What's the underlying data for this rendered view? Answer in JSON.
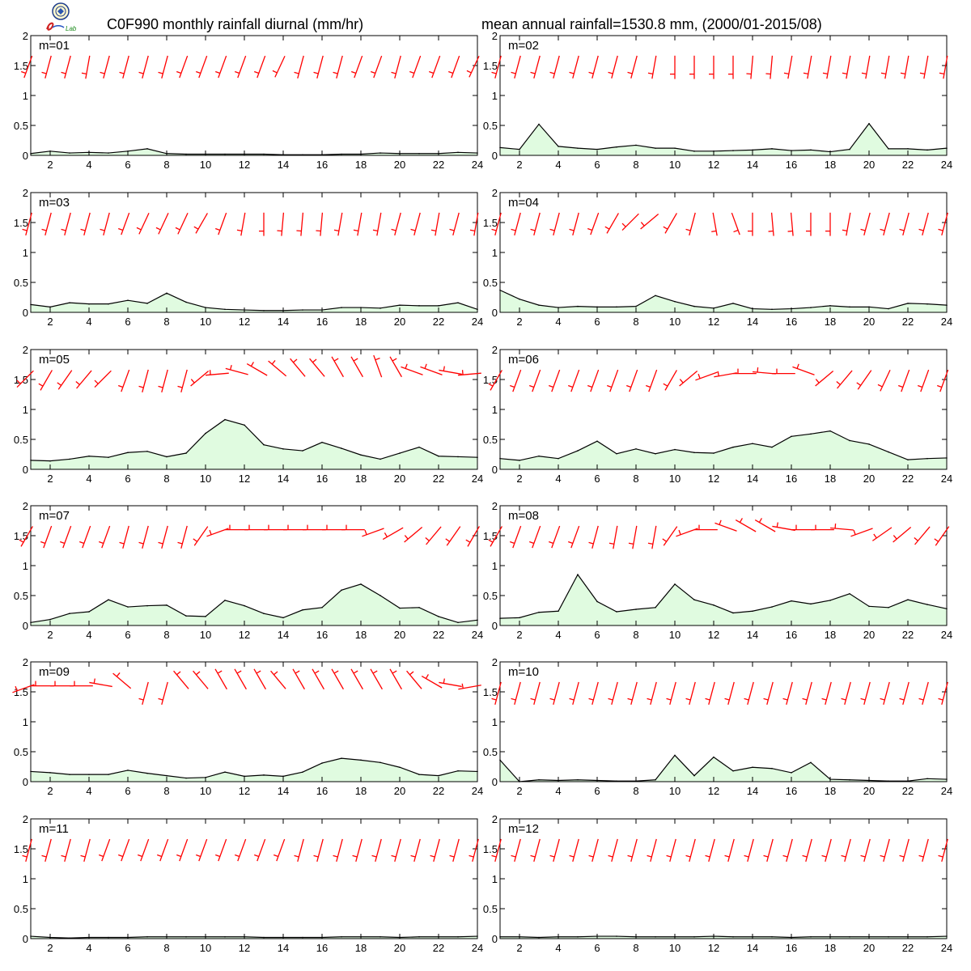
{
  "header": {
    "title_left": "C0F990 monthly rainfall diurnal (mm/hr)",
    "title_right": "mean annual rainfall=1530.8 mm, (2000/01-2015/08)",
    "logo_text": "Lab"
  },
  "colors": {
    "area_fill": "#e0fbe0",
    "line": "#000000",
    "wind": "#ff0000",
    "frame": "#000000"
  },
  "icons": {
    "logo": "lab-logo-icon"
  },
  "chart_data": {
    "type": "area",
    "xlabel": "",
    "ylabel": "",
    "x": [
      1,
      2,
      3,
      4,
      5,
      6,
      7,
      8,
      9,
      10,
      11,
      12,
      13,
      14,
      15,
      16,
      17,
      18,
      19,
      20,
      21,
      22,
      23,
      24
    ],
    "xlim": [
      1,
      24
    ],
    "ylim": [
      0,
      2
    ],
    "xticks": [
      2,
      4,
      6,
      8,
      10,
      12,
      14,
      16,
      18,
      20,
      22,
      24
    ],
    "yticks": [
      0,
      0.5,
      1,
      1.5,
      2
    ],
    "ytick_labels": [
      "0",
      "0.5",
      "1",
      "1.5",
      "2"
    ],
    "grid": false,
    "overlay": "red wind barbs at every hour near the top of each panel",
    "panels": [
      {
        "label": "m=01",
        "values": [
          0.03,
          0.07,
          0.04,
          0.05,
          0.04,
          0.07,
          0.11,
          0.03,
          0.02,
          0.02,
          0.02,
          0.02,
          0.02,
          0.01,
          0.01,
          0.01,
          0.02,
          0.02,
          0.04,
          0.03,
          0.03,
          0.03,
          0.05,
          0.04
        ],
        "wind_dir": [
          200,
          195,
          195,
          190,
          195,
          195,
          195,
          195,
          200,
          200,
          200,
          200,
          200,
          205,
          195,
          195,
          195,
          200,
          200,
          195,
          200,
          200,
          200,
          205
        ]
      },
      {
        "label": "m=02",
        "values": [
          0.13,
          0.1,
          0.52,
          0.15,
          0.12,
          0.1,
          0.14,
          0.17,
          0.12,
          0.12,
          0.07,
          0.07,
          0.08,
          0.09,
          0.11,
          0.08,
          0.09,
          0.06,
          0.1,
          0.53,
          0.11,
          0.11,
          0.09,
          0.12
        ],
        "wind_dir": [
          195,
          195,
          195,
          195,
          195,
          195,
          195,
          195,
          190,
          180,
          180,
          180,
          180,
          185,
          185,
          190,
          190,
          190,
          190,
          190,
          190,
          190,
          190,
          190
        ]
      },
      {
        "label": "m=03",
        "values": [
          0.13,
          0.09,
          0.16,
          0.14,
          0.14,
          0.2,
          0.15,
          0.32,
          0.17,
          0.08,
          0.05,
          0.04,
          0.03,
          0.03,
          0.04,
          0.04,
          0.08,
          0.08,
          0.07,
          0.12,
          0.11,
          0.11,
          0.16,
          0.05
        ],
        "wind_dir": [
          195,
          195,
          195,
          195,
          195,
          200,
          205,
          205,
          205,
          210,
          200,
          190,
          180,
          185,
          185,
          185,
          190,
          190,
          190,
          195,
          195,
          190,
          195,
          190
        ]
      },
      {
        "label": "m=04",
        "values": [
          0.37,
          0.22,
          0.12,
          0.08,
          0.1,
          0.09,
          0.09,
          0.1,
          0.28,
          0.18,
          0.1,
          0.07,
          0.15,
          0.06,
          0.05,
          0.06,
          0.08,
          0.11,
          0.09,
          0.09,
          0.06,
          0.15,
          0.14,
          0.12
        ],
        "wind_dir": [
          195,
          195,
          195,
          195,
          195,
          200,
          210,
          225,
          230,
          210,
          195,
          170,
          160,
          180,
          175,
          175,
          180,
          180,
          190,
          195,
          195,
          195,
          195,
          195
        ]
      },
      {
        "label": "m=05",
        "values": [
          0.15,
          0.14,
          0.17,
          0.22,
          0.2,
          0.28,
          0.3,
          0.21,
          0.27,
          0.6,
          0.83,
          0.74,
          0.41,
          0.34,
          0.31,
          0.45,
          0.35,
          0.24,
          0.17,
          0.27,
          0.37,
          0.22,
          0.21,
          0.2
        ],
        "wind_dir": [
          225,
          210,
          215,
          220,
          225,
          200,
          195,
          195,
          195,
          230,
          265,
          285,
          300,
          310,
          320,
          320,
          330,
          330,
          340,
          330,
          290,
          290,
          280,
          265
        ]
      },
      {
        "label": "m=06",
        "values": [
          0.18,
          0.15,
          0.22,
          0.18,
          0.31,
          0.47,
          0.26,
          0.34,
          0.26,
          0.33,
          0.28,
          0.27,
          0.37,
          0.43,
          0.37,
          0.55,
          0.59,
          0.64,
          0.48,
          0.42,
          0.29,
          0.16,
          0.18,
          0.19
        ],
        "wind_dir": [
          210,
          200,
          200,
          200,
          200,
          200,
          200,
          200,
          200,
          210,
          230,
          250,
          260,
          270,
          275,
          270,
          290,
          230,
          220,
          215,
          205,
          200,
          200,
          200
        ]
      },
      {
        "label": "m=07",
        "values": [
          0.05,
          0.1,
          0.2,
          0.23,
          0.43,
          0.31,
          0.33,
          0.34,
          0.16,
          0.15,
          0.42,
          0.33,
          0.2,
          0.13,
          0.26,
          0.3,
          0.59,
          0.69,
          0.5,
          0.29,
          0.3,
          0.15,
          0.05,
          0.09
        ],
        "wind_dir": [
          210,
          200,
          200,
          200,
          200,
          195,
          195,
          195,
          195,
          215,
          250,
          270,
          270,
          270,
          270,
          270,
          270,
          270,
          250,
          240,
          230,
          220,
          215,
          210
        ]
      },
      {
        "label": "m=08",
        "values": [
          0.12,
          0.13,
          0.22,
          0.24,
          0.85,
          0.4,
          0.23,
          0.27,
          0.3,
          0.69,
          0.43,
          0.34,
          0.21,
          0.24,
          0.31,
          0.41,
          0.36,
          0.42,
          0.53,
          0.32,
          0.3,
          0.43,
          0.35,
          0.28
        ],
        "wind_dir": [
          210,
          200,
          200,
          200,
          200,
          195,
          190,
          190,
          190,
          215,
          250,
          270,
          290,
          300,
          300,
          280,
          270,
          270,
          275,
          250,
          235,
          230,
          220,
          215
        ]
      },
      {
        "label": "m=09",
        "values": [
          0.17,
          0.15,
          0.12,
          0.12,
          0.12,
          0.19,
          0.14,
          0.1,
          0.06,
          0.07,
          0.16,
          0.09,
          0.11,
          0.09,
          0.16,
          0.31,
          0.39,
          0.36,
          0.32,
          0.24,
          0.12,
          0.1,
          0.18,
          0.17
        ],
        "wind_dir": [
          250,
          270,
          270,
          270,
          280,
          310,
          195,
          195,
          320,
          320,
          330,
          330,
          330,
          320,
          330,
          330,
          330,
          330,
          330,
          330,
          320,
          300,
          280,
          260
        ]
      },
      {
        "label": "m=10",
        "values": [
          0.36,
          0.0,
          0.03,
          0.02,
          0.03,
          0.02,
          0.01,
          0.01,
          0.03,
          0.44,
          0.1,
          0.41,
          0.18,
          0.24,
          0.22,
          0.15,
          0.32,
          0.04,
          0.03,
          0.02,
          0.01,
          0.01,
          0.05,
          0.04
        ],
        "wind_dir": [
          195,
          195,
          195,
          195,
          195,
          195,
          195,
          195,
          195,
          195,
          195,
          195,
          195,
          195,
          195,
          195,
          195,
          195,
          195,
          195,
          195,
          195,
          195,
          195
        ]
      },
      {
        "label": "m=11",
        "values": [
          0.04,
          0.02,
          0.01,
          0.02,
          0.02,
          0.02,
          0.03,
          0.03,
          0.03,
          0.03,
          0.03,
          0.03,
          0.02,
          0.02,
          0.02,
          0.02,
          0.03,
          0.03,
          0.03,
          0.02,
          0.03,
          0.03,
          0.03,
          0.04
        ],
        "wind_dir": [
          195,
          195,
          195,
          195,
          200,
          200,
          200,
          200,
          200,
          200,
          200,
          200,
          200,
          200,
          195,
          195,
          195,
          195,
          195,
          195,
          195,
          195,
          195,
          195
        ]
      },
      {
        "label": "m=12",
        "values": [
          0.03,
          0.03,
          0.02,
          0.03,
          0.03,
          0.04,
          0.04,
          0.03,
          0.03,
          0.03,
          0.03,
          0.04,
          0.03,
          0.03,
          0.03,
          0.02,
          0.03,
          0.03,
          0.03,
          0.03,
          0.03,
          0.03,
          0.03,
          0.04
        ],
        "wind_dir": [
          195,
          195,
          195,
          195,
          195,
          195,
          195,
          195,
          195,
          195,
          195,
          195,
          195,
          195,
          195,
          195,
          195,
          195,
          195,
          195,
          195,
          195,
          195,
          195
        ]
      }
    ]
  }
}
